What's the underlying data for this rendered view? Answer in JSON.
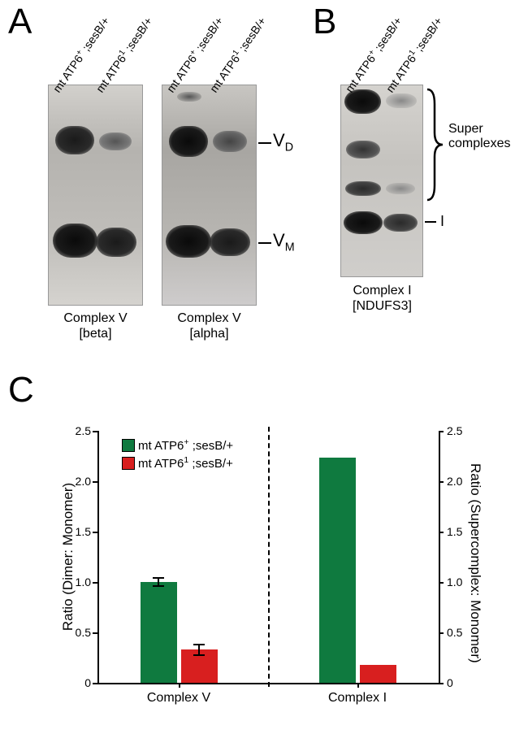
{
  "panelA": {
    "label": "A",
    "blots": [
      {
        "caption_top": "Complex V",
        "caption_bottom": "[beta]",
        "lanes": [
          {
            "label": "mt ATP6⁺ ;sesB/+"
          },
          {
            "label": "mt ATP6¹ ;sesB/+"
          }
        ],
        "bg": "#c2c0bb"
      },
      {
        "caption_top": "Complex V",
        "caption_bottom": "[alpha]",
        "lanes": [
          {
            "label": "mt ATP6⁺ ;sesB/+"
          },
          {
            "label": "mt ATP6¹ ;sesB/+"
          }
        ],
        "bg": "#bcbab6"
      }
    ],
    "band_labels": {
      "VD": "V",
      "VM": "V"
    },
    "band_sub": {
      "D": "D",
      "M": "M"
    }
  },
  "panelB": {
    "label": "B",
    "blot": {
      "caption_top": "Complex I",
      "caption_bottom": "[NDUFS3]",
      "lanes": [
        {
          "label": "mt ATP6⁺ ;sesB/+"
        },
        {
          "label": "mt ATP6¹ ;sesB/+"
        }
      ],
      "bg": "#c8c6c2"
    },
    "side_super": "Super\ncomplexes",
    "side_I": "I"
  },
  "panelC": {
    "label": "C",
    "chart": {
      "type": "bar",
      "left": {
        "title": "Ratio (Dimer: Monomer)",
        "category": "Complex V",
        "ylim": [
          0,
          2.5
        ],
        "yticks": [
          0,
          0.5,
          1.0,
          1.5,
          2.0,
          2.5
        ],
        "bars": [
          {
            "label": "mt ATP6⁺ ;sesB/+",
            "value": 1.0,
            "err": 0.05,
            "color": "#0f7a3f"
          },
          {
            "label": "mt ATP6¹ ;sesB/+",
            "value": 0.33,
            "err": 0.06,
            "color": "#d81f1f"
          }
        ]
      },
      "right": {
        "title": "Ratio (Supercomplex: Monomer)",
        "category": "Complex I",
        "ylim": [
          0,
          2.5
        ],
        "yticks": [
          0,
          0.5,
          1.0,
          1.5,
          2.0,
          2.5
        ],
        "bars": [
          {
            "label": "mt ATP6⁺ ;sesB/+",
            "value": 2.23,
            "err": 0,
            "color": "#0f7a3f"
          },
          {
            "label": "mt ATP6¹ ;sesB/+",
            "value": 0.18,
            "err": 0,
            "color": "#d81f1f"
          }
        ]
      },
      "legend": [
        {
          "color": "#0f7a3f",
          "text": "mt ATP6⁺ ;sesB/+"
        },
        {
          "color": "#d81f1f",
          "text": "mt ATP6¹ ;sesB/+"
        }
      ],
      "colors": {
        "axis": "#000000",
        "bg": "#ffffff"
      },
      "font": {
        "tick": 14,
        "title": 17,
        "cat": 16
      }
    }
  }
}
